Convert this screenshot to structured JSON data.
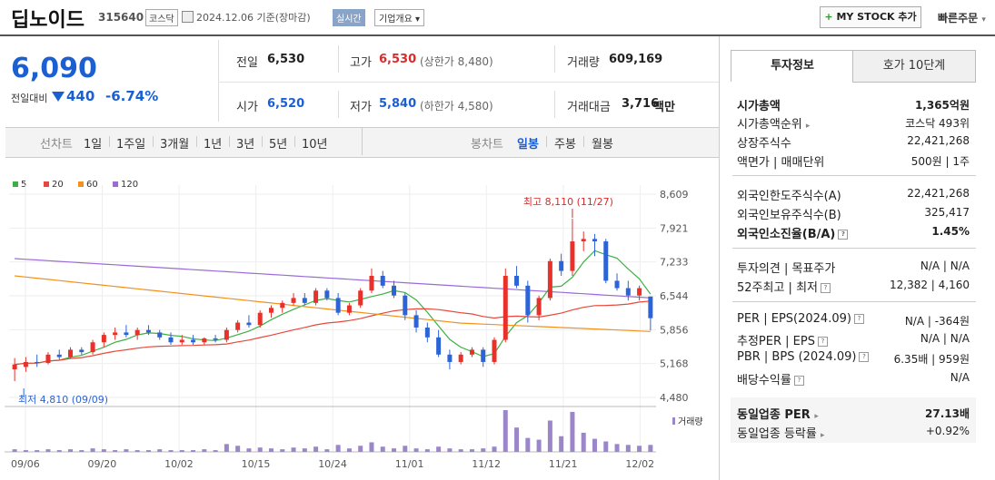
{
  "header": {
    "name": "딥노이드",
    "code": "315640",
    "market": "코스닥",
    "date": "2024.12.06 기준(장마감)",
    "realtime": "실시간",
    "company_overview": "기업개요 ▾",
    "mystock": "MY STOCK 추가",
    "quick_order": "빠른주문"
  },
  "quote": {
    "price": "6,090",
    "prev_label": "전일대비",
    "change_amount": "440",
    "change_pct": "-6.74%",
    "prev_close_label": "전일",
    "prev_close": "6,530",
    "high_label": "고가",
    "high": "6,530",
    "upper_limit": "(상한가 8,480)",
    "volume_label": "거래량",
    "volume": "609,169",
    "open_label": "시가",
    "open": "6,520",
    "low_label": "저가",
    "low": "5,840",
    "lower_limit": "(하한가 4,580)",
    "amount_label": "거래대금",
    "amount": "3,716",
    "amount_unit": "백만"
  },
  "chart_tabs": {
    "line_label": "선차트",
    "line_items": [
      "1일",
      "1주일",
      "3개월",
      "1년",
      "3년",
      "5년",
      "10년"
    ],
    "candle_label": "봉차트",
    "candle_items": [
      "일봉",
      "주봉",
      "월봉"
    ],
    "active_candle": "일봉"
  },
  "chart_data": {
    "type": "candlestick",
    "legend": [
      "5",
      "20",
      "60",
      "120"
    ],
    "legend_colors": [
      "#3cb043",
      "#e8483b",
      "#f2911b",
      "#9b6ad6"
    ],
    "y_ticks": [
      "8,609",
      "7,921",
      "7,233",
      "6,544",
      "5,856",
      "5,168",
      "4,480"
    ],
    "y_range": [
      4480,
      8609
    ],
    "x_labels": [
      "09/06",
      "09/20",
      "10/02",
      "10/15",
      "10/24",
      "11/01",
      "11/12",
      "11/21",
      "12/02"
    ],
    "max_annotation": "최고 8,110 (11/27)",
    "min_annotation": "최저 4,810 (09/09)",
    "volume_label": "거래량",
    "candles": [
      [
        5050,
        5280,
        4810,
        5150
      ],
      [
        5100,
        5300,
        5000,
        5200
      ],
      [
        5200,
        5350,
        5100,
        5180
      ],
      [
        5180,
        5400,
        5150,
        5350
      ],
      [
        5350,
        5450,
        5250,
        5300
      ],
      [
        5300,
        5500,
        5280,
        5450
      ],
      [
        5450,
        5500,
        5350,
        5400
      ],
      [
        5400,
        5650,
        5350,
        5600
      ],
      [
        5600,
        5800,
        5500,
        5750
      ],
      [
        5750,
        5900,
        5650,
        5800
      ],
      [
        5800,
        5950,
        5700,
        5750
      ],
      [
        5750,
        5900,
        5650,
        5850
      ],
      [
        5850,
        5950,
        5750,
        5800
      ],
      [
        5800,
        5850,
        5650,
        5700
      ],
      [
        5700,
        5800,
        5550,
        5600
      ],
      [
        5600,
        5750,
        5550,
        5650
      ],
      [
        5650,
        5750,
        5550,
        5600
      ],
      [
        5600,
        5700,
        5550,
        5680
      ],
      [
        5680,
        5750,
        5600,
        5650
      ],
      [
        5650,
        5900,
        5600,
        5850
      ],
      [
        5850,
        6050,
        5800,
        6000
      ],
      [
        6000,
        6150,
        5900,
        5950
      ],
      [
        5950,
        6250,
        5900,
        6200
      ],
      [
        6200,
        6350,
        6100,
        6300
      ],
      [
        6300,
        6450,
        6200,
        6400
      ],
      [
        6400,
        6600,
        6350,
        6500
      ],
      [
        6500,
        6600,
        6350,
        6400
      ],
      [
        6400,
        6700,
        6350,
        6650
      ],
      [
        6650,
        6700,
        6450,
        6500
      ],
      [
        6500,
        6600,
        6150,
        6200
      ],
      [
        6200,
        6400,
        6150,
        6350
      ],
      [
        6350,
        6700,
        6300,
        6650
      ],
      [
        6650,
        7100,
        6600,
        6950
      ],
      [
        6950,
        7050,
        6700,
        6750
      ],
      [
        6750,
        6850,
        6500,
        6550
      ],
      [
        6550,
        6600,
        6050,
        6150
      ],
      [
        6150,
        6250,
        5800,
        5900
      ],
      [
        5900,
        6000,
        5600,
        5700
      ],
      [
        5700,
        5850,
        5300,
        5350
      ],
      [
        5350,
        5450,
        5050,
        5200
      ],
      [
        5200,
        5400,
        5150,
        5350
      ],
      [
        5350,
        5500,
        5300,
        5450
      ],
      [
        5450,
        5500,
        5100,
        5200
      ],
      [
        5200,
        5700,
        5150,
        5650
      ],
      [
        5650,
        7100,
        5600,
        6950
      ],
      [
        6950,
        7150,
        6700,
        6750
      ],
      [
        6750,
        6850,
        6000,
        6150
      ],
      [
        6150,
        6550,
        6050,
        6500
      ],
      [
        6500,
        7300,
        6450,
        7250
      ],
      [
        7250,
        7400,
        6950,
        7050
      ],
      [
        7050,
        8110,
        6950,
        7650
      ],
      [
        7650,
        7850,
        7450,
        7700
      ],
      [
        7700,
        7800,
        7350,
        7650
      ],
      [
        7650,
        7700,
        6800,
        6850
      ],
      [
        6850,
        7000,
        6650,
        6700
      ],
      [
        6700,
        6850,
        6450,
        6550
      ],
      [
        6550,
        6750,
        6450,
        6700
      ],
      [
        6530,
        6530,
        5840,
        6090
      ]
    ],
    "volumes": [
      3,
      2,
      2,
      3,
      2,
      3,
      2,
      4,
      3,
      2,
      3,
      2,
      2,
      3,
      2,
      2,
      2,
      3,
      2,
      9,
      7,
      4,
      5,
      4,
      3,
      5,
      4,
      6,
      3,
      8,
      4,
      7,
      11,
      6,
      4,
      7,
      4,
      3,
      6,
      4,
      3,
      3,
      4,
      6,
      48,
      28,
      16,
      14,
      36,
      18,
      46,
      22,
      15,
      12,
      9,
      8,
      7,
      8
    ]
  },
  "right_panel": {
    "tab_invest": "투자정보",
    "tab_order": "호가 10단계",
    "market_cap_label": "시가총액",
    "market_cap": "1,365억원",
    "market_cap_rank_label": "시가총액순위",
    "market_cap_rank": "코스닥 493위",
    "shares_label": "상장주식수",
    "shares": "22,421,268",
    "par_label": "액면가 | 매매단위",
    "par": "500원 | 1주",
    "foreign_limit_label": "외국인한도주식수(A)",
    "foreign_limit": "22,421,268",
    "foreign_hold_label": "외국인보유주식수(B)",
    "foreign_hold": "325,417",
    "foreign_rate_label": "외국인소진율(B/A)",
    "foreign_rate": "1.45%",
    "opinion_label": "투자의견 | 목표주가",
    "opinion": "N/A | N/A",
    "high52_label": "52주최고 | 최저",
    "high52": "12,382 | 4,160",
    "per_label": "PER | EPS(2024.09)",
    "per": "N/A | -364원",
    "est_per_label": "추정PER | EPS",
    "est_per": "N/A | N/A",
    "pbr_label": "PBR | BPS (2024.09)",
    "pbr": "6.35배 | 959원",
    "dividend_label": "배당수익률",
    "dividend": "N/A",
    "sector_per_label": "동일업종 PER",
    "sector_per": "27.13배",
    "sector_change_label": "동일업종 등락률",
    "sector_change": "+0.92%"
  }
}
